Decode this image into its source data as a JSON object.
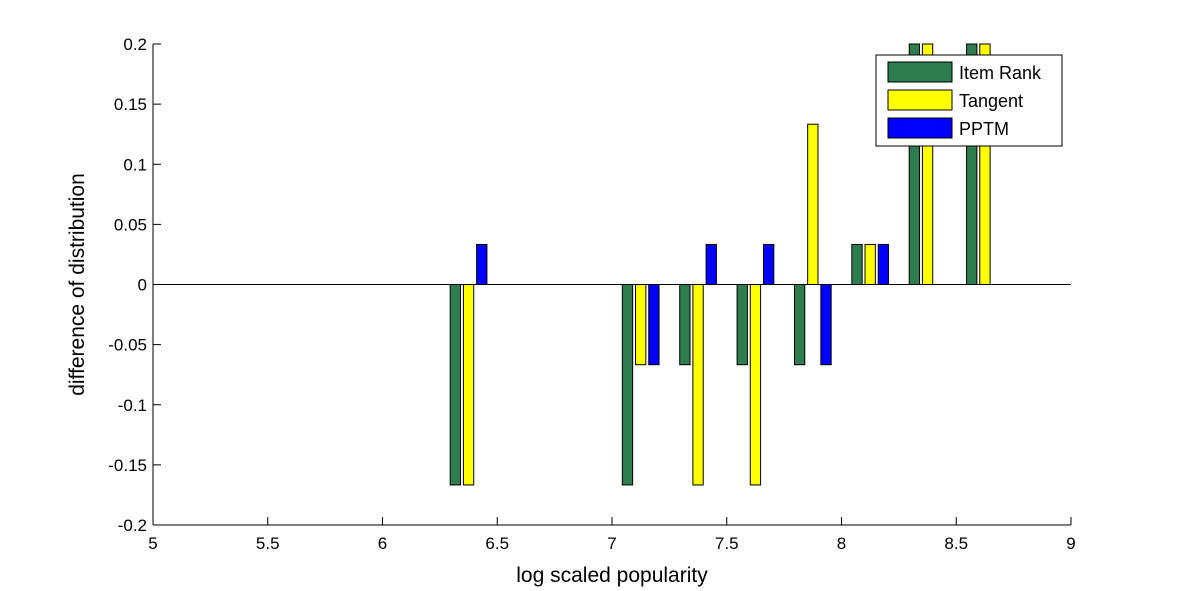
{
  "chart_data": {
    "type": "bar",
    "title": "",
    "xlabel": "log scaled popularity",
    "ylabel": "difference of distribution",
    "xlim": [
      5,
      9
    ],
    "ylim": [
      -0.2,
      0.2
    ],
    "xticks": [
      5,
      5.5,
      6,
      6.5,
      7,
      7.5,
      8,
      8.5,
      9
    ],
    "xtick_labels": [
      "5",
      "5.5",
      "6",
      "6.5",
      "7",
      "7.5",
      "8",
      "8.5",
      "9"
    ],
    "yticks": [
      -0.2,
      -0.15,
      -0.1,
      -0.05,
      0,
      0.05,
      0.1,
      0.15,
      0.2
    ],
    "ytick_labels": [
      "-0.2",
      "-0.15",
      "-0.1",
      "-0.05",
      "0",
      "0.05",
      "0.1",
      "0.15",
      "0.2"
    ],
    "x": [
      6.375,
      7.125,
      7.375,
      7.625,
      7.875,
      8.125,
      8.375,
      8.625
    ],
    "series": [
      {
        "name": "Item Rank",
        "color": "#2e7d4f",
        "values": [
          -0.1667,
          -0.1667,
          -0.0667,
          -0.0667,
          -0.0667,
          0.0333,
          0.2,
          0.2
        ]
      },
      {
        "name": "Tangent",
        "color": "#ffff00",
        "values": [
          -0.1667,
          -0.0667,
          -0.1667,
          -0.1667,
          0.1333,
          0.0333,
          0.2,
          0.2
        ]
      },
      {
        "name": "PPTM",
        "color": "#0000ff",
        "values": [
          0.0333,
          -0.0667,
          0.0333,
          0.0333,
          -0.0667,
          0.0333,
          0,
          0
        ]
      }
    ],
    "grid": false,
    "legend_position": "top-right",
    "baseline_line": 0
  }
}
